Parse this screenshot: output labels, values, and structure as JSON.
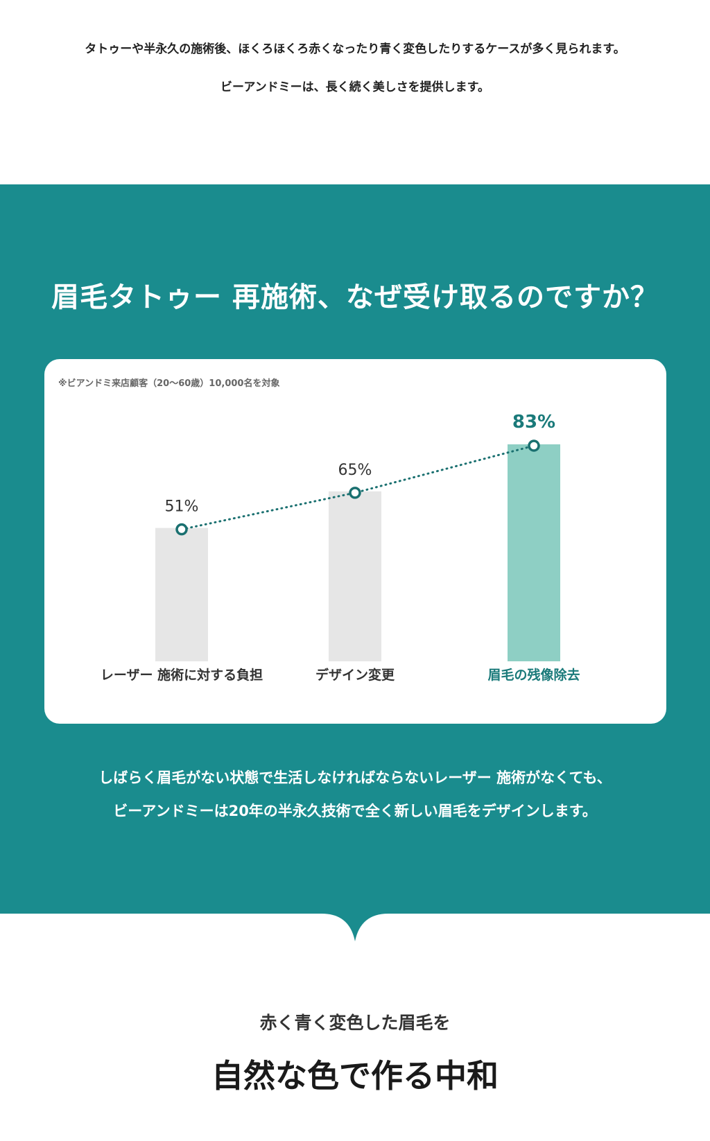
{
  "intro": {
    "line1": "タトゥーや半永久の施術後、ほくろほくろ赤くなったり青く変色したりするケースが多く見られます。",
    "line2": "ビーアンドミーは、長く続く美しさを提供します。"
  },
  "section": {
    "title": "眉毛タトゥー 再施術、なぜ受け取るのですか？",
    "desc1": "しばらく眉毛がない状態で生活しなければならないレーザー 施術がなくても、",
    "desc2": "ビーアンドミーは20年の半永久技術で全く新しい眉毛をデザインします。",
    "bg_color": "#1a8c8e"
  },
  "chart_data": {
    "type": "bar",
    "note": "※ビアンドミ来店顧客（20～60歳）10,000名を対象",
    "categories": [
      "レーザー 施術に対する負担",
      "デザイン変更",
      "眉毛の残像除去"
    ],
    "values": [
      51,
      65,
      83
    ],
    "value_labels": [
      "51%",
      "65%",
      "83%"
    ],
    "highlight_index": 2,
    "ylim": [
      0,
      100
    ],
    "colors": {
      "bar": "#e6e6e6",
      "bar_highlight": "#8ecfc4",
      "line": "#1a7070",
      "label": "#333333",
      "label_highlight": "#1a7a7a"
    },
    "overlay_line": "dotted"
  },
  "bottom": {
    "subtitle": "赤く青く変色した眉毛を",
    "title": "自然な色で作る中和"
  }
}
